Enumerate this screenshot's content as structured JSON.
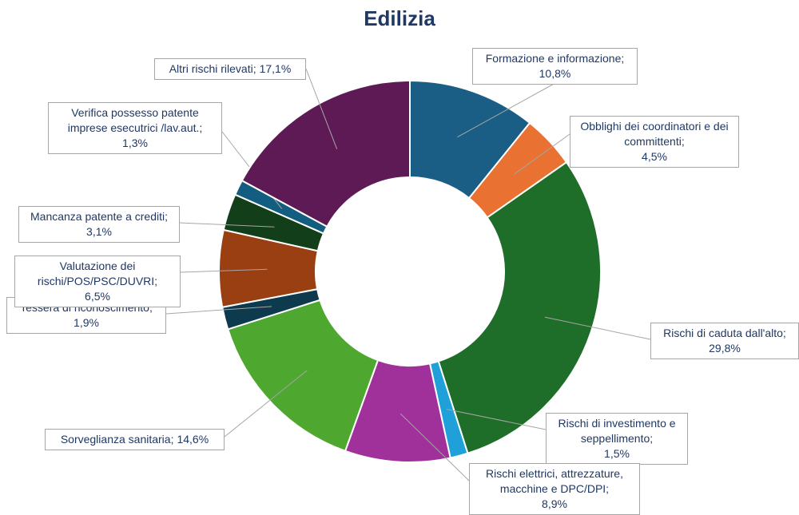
{
  "chart_data": {
    "type": "donut",
    "title": "Edilizia",
    "categories": [
      "Formazione e informazione;",
      "Obblighi dei coordinatori e dei committenti;",
      "Rischi di caduta dall'alto;",
      "Rischi di investimento e seppellimento;",
      "Rischi elettrici, attrezzature, macchine e DPC/DPI;",
      "Sorveglianza sanitaria;",
      "Tessera di riconoscimento;",
      "Valutazione dei rischi/POS/PSC/DUVRI;",
      "Mancanza patente a crediti;",
      "Verifica possesso patente imprese esecutrici /lav.aut.;",
      "Altri rischi rilevati;"
    ],
    "values": [
      10.8,
      4.5,
      29.8,
      1.5,
      8.9,
      14.6,
      1.9,
      6.5,
      3.1,
      1.3,
      17.1
    ],
    "value_labels": [
      "10,8%",
      "4,5%",
      "29,8%",
      "1,5%",
      "8,9%",
      "14,6%",
      "1,9%",
      "6,5%",
      "3,1%",
      "1,3%",
      "17,1%"
    ],
    "colors": [
      "#1a5e86",
      "#e97132",
      "#1e6e2a",
      "#1fa0d8",
      "#a0309a",
      "#4ea72e",
      "#0e3a4e",
      "#9a3f12",
      "#123f1a",
      "#125d80",
      "#5e1a55"
    ]
  }
}
